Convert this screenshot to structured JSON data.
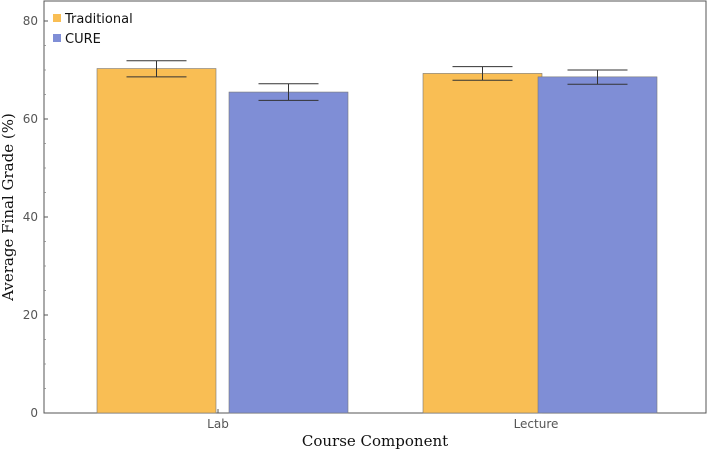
{
  "chart_data": {
    "type": "bar",
    "title": "",
    "xlabel": "Course Component",
    "ylabel": "Average Final Grade (%)",
    "categories": [
      "Lab",
      "Lecture"
    ],
    "series": [
      {
        "name": "Traditional",
        "color": "#F9BE54",
        "values": [
          70.3,
          69.3
        ],
        "error": [
          [
            68.6,
            71.9
          ],
          [
            67.9,
            70.7
          ]
        ]
      },
      {
        "name": "CURE",
        "color": "#7F8ED6",
        "values": [
          65.5,
          68.6
        ],
        "error": [
          [
            63.8,
            67.2
          ],
          [
            67.1,
            70.0
          ]
        ]
      }
    ],
    "ylim": [
      0,
      85
    ],
    "yticks": [
      0,
      20,
      40,
      60,
      80
    ],
    "grid": false,
    "legend": "top-left"
  }
}
